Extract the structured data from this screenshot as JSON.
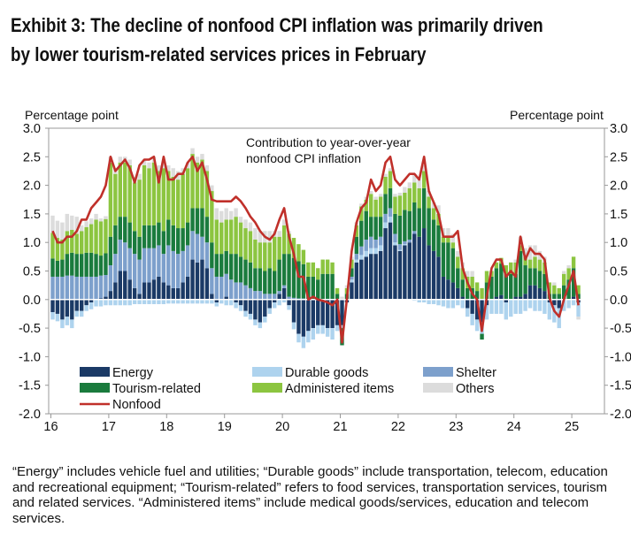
{
  "title_lines": [
    "Exhibit 3: The decline of nonfood CPI inflation was primarily driven",
    "by lower tourism-related services prices in February"
  ],
  "footnote": "“Energy” includes vehicle fuel and utilities; “Durable goods” include transportation, telecom, education and recreational equipment; “Tourism-related” refers to food services, transportation services, tourism and related services. “Administered items” include medical goods/services, education and telecom services.",
  "chart_data": {
    "type": "bar",
    "stacked": true,
    "annotation": [
      "Contribution to year-over-year",
      "nonfood CPI inflation"
    ],
    "ylabel_left": "Percentage point",
    "ylabel_right": "Percentage point",
    "ylim": [
      -2.0,
      3.0
    ],
    "yticks": [
      "3.0",
      "2.5",
      "2.0",
      "1.5",
      "1.0",
      "0.5",
      "0.0",
      "-0.5",
      "-1.0",
      "-1.5",
      "-2.0"
    ],
    "xticks": [
      "16",
      "17",
      "18",
      "19",
      "20",
      "21",
      "22",
      "23",
      "24",
      "25"
    ],
    "x_start": "2016-01",
    "x_end": "2025-02",
    "frequency": "monthly",
    "legend_placement": "bottom-inside",
    "series": [
      {
        "name": "Energy",
        "color": "#1b3a66",
        "values": [
          -0.22,
          -0.25,
          -0.35,
          -0.3,
          -0.35,
          -0.2,
          -0.2,
          -0.1,
          -0.05,
          0.0,
          0.02,
          0.05,
          0.15,
          0.3,
          0.5,
          0.5,
          0.35,
          0.2,
          0.1,
          0.3,
          0.3,
          0.35,
          0.4,
          0.3,
          0.25,
          0.2,
          0.2,
          0.3,
          0.4,
          0.7,
          0.65,
          0.7,
          0.55,
          0.1,
          -0.05,
          0.0,
          0.05,
          0.0,
          -0.05,
          -0.1,
          -0.2,
          -0.25,
          -0.35,
          -0.4,
          -0.3,
          -0.15,
          -0.05,
          0.1,
          0.2,
          -0.1,
          -0.4,
          -0.6,
          -0.65,
          -0.55,
          -0.5,
          -0.45,
          -0.45,
          -0.5,
          -0.5,
          -0.45,
          -0.45,
          -0.05,
          0.3,
          0.65,
          0.7,
          0.75,
          0.8,
          0.8,
          0.85,
          1.25,
          1.35,
          0.95,
          0.85,
          0.95,
          1.0,
          1.15,
          1.1,
          1.25,
          0.95,
          0.85,
          0.75,
          0.4,
          0.35,
          0.3,
          0.2,
          0.05,
          -0.15,
          -0.25,
          -0.35,
          -0.4,
          -0.1,
          0.0,
          0.05,
          0.08,
          -0.05,
          0.0,
          0.05,
          0.05,
          0.1,
          0.25,
          0.25,
          0.2,
          0.15,
          -0.05,
          -0.1,
          -0.15,
          0.0,
          0.0,
          0.05,
          -0.05
        ]
      },
      {
        "name": "Durable goods",
        "color": "#aed3ee",
        "values": [
          -0.13,
          -0.13,
          -0.15,
          -0.15,
          -0.15,
          -0.1,
          -0.1,
          -0.1,
          -0.12,
          -0.12,
          -0.12,
          -0.1,
          -0.1,
          -0.1,
          -0.1,
          -0.1,
          -0.1,
          -0.08,
          -0.08,
          -0.08,
          -0.08,
          -0.08,
          -0.08,
          -0.08,
          -0.07,
          -0.07,
          -0.07,
          -0.07,
          -0.07,
          -0.07,
          -0.07,
          -0.07,
          -0.07,
          -0.07,
          -0.07,
          -0.07,
          -0.1,
          -0.1,
          -0.1,
          -0.1,
          -0.1,
          -0.1,
          -0.1,
          -0.1,
          -0.1,
          -0.1,
          -0.1,
          -0.1,
          -0.05,
          -0.08,
          -0.12,
          -0.15,
          -0.2,
          -0.2,
          -0.2,
          -0.15,
          -0.15,
          -0.15,
          -0.2,
          -0.1,
          -0.05,
          0.0,
          0.05,
          0.05,
          0.08,
          0.1,
          0.1,
          0.1,
          0.1,
          0.1,
          0.1,
          0.05,
          0.02,
          0.02,
          0.0,
          -0.02,
          -0.05,
          -0.05,
          -0.08,
          -0.08,
          -0.1,
          -0.12,
          -0.15,
          -0.15,
          -0.1,
          -0.15,
          -0.15,
          -0.2,
          -0.2,
          -0.2,
          -0.25,
          -0.25,
          -0.25,
          -0.25,
          -0.3,
          -0.3,
          -0.25,
          -0.25,
          -0.2,
          -0.15,
          -0.2,
          -0.2,
          -0.25,
          -0.3,
          -0.3,
          -0.35,
          -0.2,
          -0.15,
          -0.1,
          -0.25
        ]
      },
      {
        "name": "Shelter",
        "color": "#7da0cc",
        "values": [
          0.4,
          0.4,
          0.4,
          0.42,
          0.42,
          0.4,
          0.4,
          0.4,
          0.4,
          0.4,
          0.4,
          0.38,
          0.45,
          0.5,
          0.55,
          0.5,
          0.55,
          0.6,
          0.6,
          0.6,
          0.6,
          0.55,
          0.55,
          0.5,
          0.7,
          0.65,
          0.6,
          0.55,
          0.55,
          0.5,
          0.5,
          0.4,
          0.45,
          0.45,
          0.4,
          0.4,
          0.4,
          0.35,
          0.3,
          0.3,
          0.25,
          0.2,
          0.15,
          0.15,
          0.1,
          0.1,
          0.1,
          0.05,
          0.05,
          0.05,
          0.03,
          0.02,
          0.02,
          0.0,
          0.0,
          0.0,
          0.0,
          0.0,
          0.0,
          0.0,
          0.0,
          0.0,
          0.05,
          0.1,
          0.15,
          0.2,
          0.2,
          0.15,
          0.15,
          0.15,
          0.15,
          0.15,
          0.1,
          0.05,
          0.05,
          0.05,
          0.0,
          0.0,
          0.0,
          0.0,
          0.0,
          0.0,
          0.0,
          0.0,
          0,
          0,
          0,
          0,
          0,
          0,
          0,
          0,
          0,
          0,
          0,
          0,
          0,
          0,
          0,
          0,
          0,
          0,
          0,
          0,
          0,
          0,
          0,
          0,
          0,
          0
        ]
      },
      {
        "name": "Tourism-related",
        "color": "#1a7b3d",
        "values": [
          0.32,
          0.28,
          0.3,
          0.38,
          0.4,
          0.4,
          0.4,
          0.42,
          0.42,
          0.4,
          0.35,
          0.38,
          0.5,
          0.5,
          0.4,
          0.45,
          0.45,
          0.4,
          0.4,
          0.4,
          0.4,
          0.4,
          0.4,
          0.4,
          0.45,
          0.45,
          0.45,
          0.4,
          0.4,
          0.4,
          0.45,
          0.5,
          0.45,
          0.45,
          0.4,
          0.4,
          0.4,
          0.45,
          0.5,
          0.45,
          0.45,
          0.45,
          0.4,
          0.4,
          0.4,
          0.45,
          0.4,
          0.55,
          0.55,
          0.75,
          0.7,
          0.65,
          0.6,
          0.4,
          0.4,
          0.35,
          0.45,
          0.45,
          0.45,
          0.1,
          -0.3,
          0.1,
          0.15,
          0.3,
          0.45,
          0.5,
          0.35,
          0.4,
          0.35,
          0.35,
          0.35,
          0.35,
          0.5,
          0.55,
          0.5,
          0.5,
          0.5,
          0.7,
          0.65,
          0.55,
          0.55,
          0.6,
          0.65,
          0.6,
          0.35,
          0.3,
          0.2,
          0.2,
          0.15,
          -0.1,
          0.3,
          0.4,
          0.5,
          0.55,
          0.45,
          0.45,
          0.4,
          0.8,
          0.5,
          0.3,
          0.3,
          0.3,
          0.3,
          0.1,
          0.1,
          0.1,
          0.25,
          0.35,
          0.5,
          0.1
        ]
      },
      {
        "name": "Administered items",
        "color": "#8cc540",
        "values": [
          0.45,
          0.4,
          0.35,
          0.4,
          0.4,
          0.35,
          0.4,
          0.45,
          0.5,
          0.6,
          0.6,
          0.6,
          1.3,
          0.9,
          0.95,
          0.95,
          1.0,
          0.85,
          1.0,
          1.05,
          1.0,
          1.1,
          0.9,
          1.1,
          0.85,
          0.85,
          0.85,
          0.95,
          0.95,
          0.95,
          0.8,
          0.85,
          0.8,
          0.9,
          0.6,
          0.55,
          0.55,
          0.6,
          0.65,
          0.6,
          0.55,
          0.55,
          0.5,
          0.45,
          0.5,
          0.45,
          0.6,
          0.4,
          0.5,
          0.35,
          0.35,
          0.3,
          0.25,
          0.25,
          0.25,
          0.2,
          0.25,
          0.25,
          0.2,
          0.1,
          0.0,
          0.1,
          0.15,
          0.2,
          0.25,
          0.2,
          0.4,
          0.3,
          0.35,
          0.3,
          0.3,
          0.3,
          0.35,
          0.3,
          0.4,
          0.35,
          0.35,
          0.3,
          0.2,
          0.2,
          0.2,
          0.1,
          0.1,
          0.1,
          0.2,
          0.2,
          0.2,
          0.2,
          0.15,
          0.2,
          0.2,
          0.1,
          0.1,
          0.1,
          0.15,
          0.2,
          0.2,
          0.1,
          0.15,
          0.15,
          0.2,
          0.2,
          0.2,
          0.2,
          0.15,
          0.1,
          0.2,
          0.2,
          0.2,
          0.15
        ]
      },
      {
        "name": "Others",
        "color": "#dcdcdc",
        "values": [
          0.3,
          0.3,
          0.3,
          0.3,
          0.25,
          0.3,
          0.1,
          0.1,
          0.1,
          0.1,
          0.05,
          0.05,
          0.1,
          0.1,
          0.1,
          0.1,
          0.1,
          0.1,
          0.1,
          0.1,
          0.1,
          0.1,
          0.1,
          0.1,
          0.1,
          0.15,
          0.15,
          0.1,
          0.1,
          0.1,
          0.1,
          0.1,
          0.1,
          0.1,
          0.2,
          0.2,
          0.2,
          0.15,
          0.15,
          0.1,
          0.15,
          0.15,
          0.2,
          0.2,
          0.2,
          0.2,
          0.1,
          0.1,
          0.1,
          0.05,
          0.0,
          0.0,
          0.0,
          0.0,
          0.0,
          0.0,
          0.0,
          0.0,
          0.0,
          0.0,
          0.05,
          0.05,
          0.05,
          0.05,
          0.05,
          0.05,
          0.05,
          0.05,
          0.05,
          0.05,
          0.05,
          0.05,
          0.05,
          0.1,
          0.1,
          0.15,
          0.15,
          0.1,
          0.1,
          0.1,
          0.15,
          0.15,
          0.15,
          0.15,
          0.1,
          0.1,
          0.1,
          0.1,
          0.0,
          0.0,
          0.0,
          0.0,
          0.0,
          0.0,
          0.0,
          0.0,
          0.05,
          0.15,
          0.15,
          0.25,
          0.2,
          0.15,
          0.1,
          0.0,
          0.05,
          0.0,
          0.05,
          0.05,
          0.0,
          -0.05
        ]
      }
    ],
    "line": {
      "name": "Nonfood",
      "color": "#c0302a",
      "values": [
        1.2,
        1.0,
        1.0,
        1.1,
        1.1,
        1.2,
        1.4,
        1.4,
        1.6,
        1.7,
        1.8,
        2.0,
        2.5,
        2.25,
        2.35,
        2.45,
        2.3,
        2.05,
        2.35,
        2.45,
        2.45,
        2.5,
        2.05,
        2.5,
        2.1,
        2.1,
        2.2,
        2.2,
        2.4,
        2.5,
        2.25,
        2.4,
        2.1,
        1.75,
        1.72,
        1.72,
        1.72,
        1.72,
        1.8,
        1.72,
        1.6,
        1.45,
        1.35,
        1.2,
        1.1,
        1.05,
        1.15,
        1.4,
        1.6,
        1.1,
        0.8,
        0.4,
        0.4,
        0.0,
        0.05,
        0.0,
        -0.02,
        -0.05,
        -0.1,
        0.0,
        -0.75,
        0.0,
        0.85,
        1.35,
        1.6,
        1.7,
        2.1,
        1.9,
        2.0,
        2.4,
        2.5,
        2.1,
        2.0,
        2.1,
        2.2,
        2.2,
        2.1,
        2.5,
        1.9,
        1.7,
        1.5,
        1.1,
        1.1,
        1.1,
        1.2,
        0.55,
        0.3,
        0.1,
        0.0,
        -0.55,
        0.05,
        0.55,
        0.7,
        0.7,
        0.4,
        0.5,
        0.4,
        1.1,
        0.7,
        0.9,
        0.8,
        0.8,
        0.7,
        0.03,
        -0.2,
        -0.3,
        0.0,
        0.25,
        0.5,
        -0.1
      ]
    }
  }
}
